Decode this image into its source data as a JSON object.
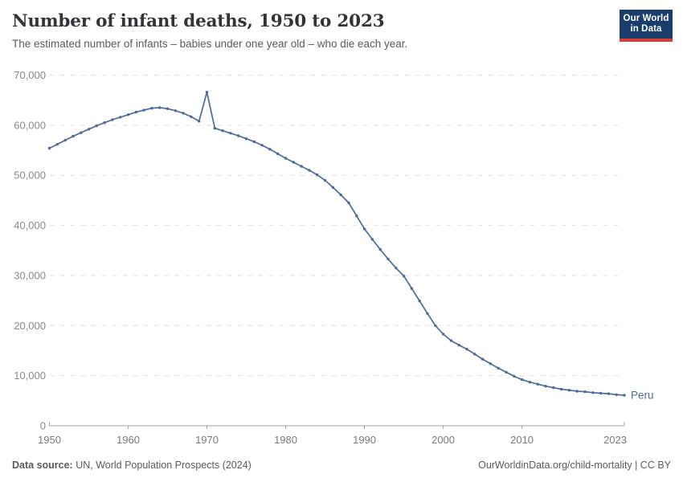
{
  "header": {
    "title": "Number of infant deaths, 1950 to 2023",
    "subtitle": "The estimated number of infants – babies under one year old – who die each year."
  },
  "logo": {
    "line1": "Our World",
    "line2": "in Data",
    "bg_color": "#1a3e6b",
    "stripe_color": "#d93a3a"
  },
  "chart_data": {
    "type": "line",
    "title": "Number of infant deaths, 1950 to 2023",
    "xlabel": "",
    "ylabel": "",
    "xlim": [
      1950,
      2023
    ],
    "ylim": [
      0,
      70000
    ],
    "x_ticks": [
      1950,
      1960,
      1970,
      1980,
      1990,
      2000,
      2010,
      2023
    ],
    "y_ticks": [
      0,
      10000,
      20000,
      30000,
      40000,
      50000,
      60000,
      70000
    ],
    "grid": "horizontal-dashed",
    "legend_position": "end-of-line-label",
    "series": [
      {
        "name": "Peru",
        "color": "#4c6a9c",
        "x": [
          1950,
          1951,
          1952,
          1953,
          1954,
          1955,
          1956,
          1957,
          1958,
          1959,
          1960,
          1961,
          1962,
          1963,
          1964,
          1965,
          1966,
          1967,
          1968,
          1969,
          1970,
          1971,
          1972,
          1973,
          1974,
          1975,
          1976,
          1977,
          1978,
          1979,
          1980,
          1981,
          1982,
          1983,
          1984,
          1985,
          1986,
          1987,
          1988,
          1989,
          1990,
          1991,
          1992,
          1993,
          1994,
          1995,
          1996,
          1997,
          1998,
          1999,
          2000,
          2001,
          2002,
          2003,
          2004,
          2005,
          2006,
          2007,
          2008,
          2009,
          2010,
          2011,
          2012,
          2013,
          2014,
          2015,
          2016,
          2017,
          2018,
          2019,
          2020,
          2021,
          2022,
          2023
        ],
        "values": [
          55400,
          56200,
          57000,
          57800,
          58500,
          59200,
          59900,
          60500,
          61100,
          61600,
          62100,
          62600,
          63000,
          63400,
          63500,
          63300,
          62900,
          62400,
          61700,
          60800,
          66600,
          59400,
          58900,
          58400,
          57900,
          57300,
          56700,
          56000,
          55200,
          54300,
          53400,
          52600,
          51800,
          51000,
          50100,
          49000,
          47600,
          46100,
          44500,
          41900,
          39300,
          37200,
          35200,
          33300,
          31500,
          29900,
          27400,
          24900,
          22400,
          20000,
          18300,
          17000,
          16100,
          15300,
          14300,
          13300,
          12400,
          11500,
          10700,
          9900,
          9200,
          8700,
          8300,
          7900,
          7600,
          7300,
          7100,
          6900,
          6800,
          6600,
          6500,
          6400,
          6200,
          6100
        ]
      }
    ]
  },
  "footer": {
    "source_label": "Data source:",
    "source_value": " UN, World Population Prospects (2024)",
    "site_link": "OurWorldinData.org/child-mortality",
    "license_suffix": " | CC BY"
  }
}
